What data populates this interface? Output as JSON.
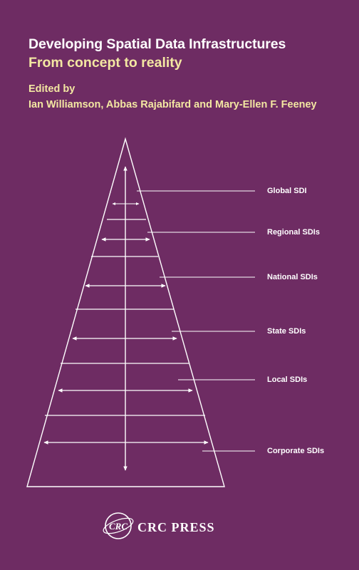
{
  "cover": {
    "title": "Developing Spatial Data Infrastructures",
    "subtitle": "From concept to reality",
    "edited_by": "Edited by",
    "editors": "Ian Williamson, Abbas Rajabifard and Mary-Ellen F. Feeney"
  },
  "diagram": {
    "levels": [
      "Global SDI",
      "Regional SDIs",
      "National SDIs",
      "State SDIs",
      "Local SDIs",
      "Corporate SDIs"
    ]
  },
  "publisher": {
    "logo_text": "CRC",
    "name": "CRC PRESS"
  },
  "colors": {
    "background": "#6e2c63",
    "accent_text": "#f3e7a2",
    "line": "#ffffff"
  }
}
